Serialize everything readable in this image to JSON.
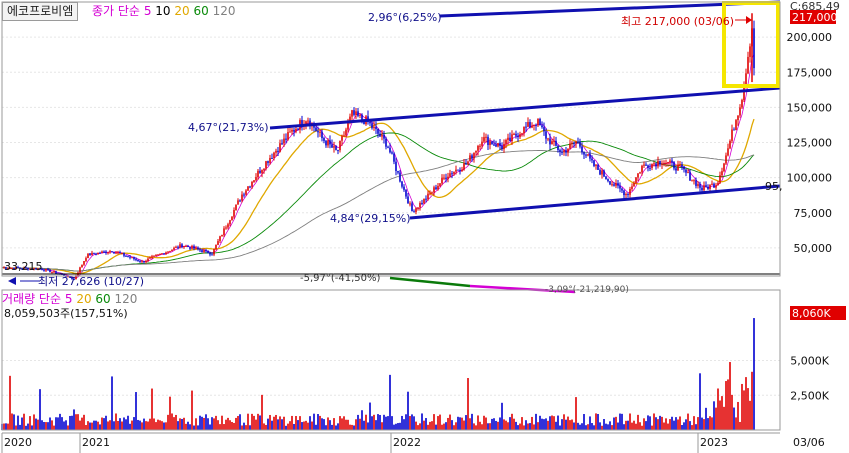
{
  "stock_name": "에코프로비엠",
  "price_indicator": {
    "label": "종가 단순",
    "periods": [
      "5",
      "10",
      "20",
      "60",
      "120"
    ],
    "colors": [
      "#d400d4",
      "#000000",
      "#e0a800",
      "#0a8a0a",
      "#808080"
    ]
  },
  "volume_indicator": {
    "label": "거래량 단순",
    "periods": [
      "5",
      "20",
      "60",
      "120"
    ],
    "colors": [
      "#d400d4",
      "#e0a800",
      "#0a8a0a",
      "#808080"
    ]
  },
  "volume_value": "8,059,503주(157,51%)",
  "price_axis": {
    "ticks": [
      "200,000",
      "175,000",
      "150,000",
      "125,000",
      "100,000",
      "75,000",
      "50,000"
    ],
    "tick_values": [
      200000,
      175000,
      150000,
      125000,
      100000,
      75000,
      50000
    ],
    "range": [
      30000,
      225000
    ]
  },
  "volume_axis": {
    "ticks": [
      "5,000K",
      "2,500K"
    ],
    "tick_values": [
      5000,
      2500
    ],
    "range": [
      0,
      9000
    ]
  },
  "time_axis": {
    "labels": [
      "2020",
      "2021",
      "2022",
      "2023",
      "03/06"
    ]
  },
  "badges": {
    "current_price": "217,000",
    "current_volume": "8,060K",
    "top_clip": "C:685,49"
  },
  "annotations": {
    "high": "최고 217,000 (03/06)",
    "low": "최저 27,626 (10/27)",
    "left_level": "33,215",
    "right_level": "95,",
    "line_top": "2,96°(6,25%)",
    "line_mid": "4,67°(21,73%)",
    "line_low": "4,84°(29,15%)",
    "clipped_1": "-5,97°(-41,50%)",
    "clipped_2": "-3,09°(-21,219,90)"
  },
  "chart_data": [
    {
      "type": "line",
      "name_text": "종가",
      "x": [
        "2020",
        "2021",
        "2022",
        "2023",
        "03/06"
      ],
      "ylim": [
        30000,
        225000
      ],
      "anchors": [
        [
          0,
          36000
        ],
        [
          40,
          35000
        ],
        [
          60,
          31000
        ],
        [
          72,
          27626
        ],
        [
          85,
          45000
        ],
        [
          110,
          48000
        ],
        [
          140,
          40000
        ],
        [
          180,
          52000
        ],
        [
          210,
          46000
        ],
        [
          240,
          88000
        ],
        [
          265,
          112000
        ],
        [
          290,
          133000
        ],
        [
          305,
          143000
        ],
        [
          320,
          128000
        ],
        [
          335,
          118000
        ],
        [
          350,
          145000
        ],
        [
          365,
          140000
        ],
        [
          385,
          124000
        ],
        [
          400,
          95000
        ],
        [
          410,
          76000
        ],
        [
          425,
          86000
        ],
        [
          445,
          102000
        ],
        [
          465,
          110000
        ],
        [
          480,
          128000
        ],
        [
          500,
          122000
        ],
        [
          520,
          134000
        ],
        [
          535,
          140000
        ],
        [
          545,
          128000
        ],
        [
          560,
          118000
        ],
        [
          575,
          126000
        ],
        [
          590,
          110000
        ],
        [
          610,
          96000
        ],
        [
          625,
          88000
        ],
        [
          640,
          108000
        ],
        [
          660,
          112000
        ],
        [
          680,
          106000
        ],
        [
          700,
          92000
        ],
        [
          715,
          96000
        ],
        [
          725,
          118000
        ],
        [
          740,
          158000
        ],
        [
          752,
          217000
        ]
      ],
      "high": 217000,
      "low": 27626,
      "gridlines": true
    },
    {
      "type": "bar",
      "name_text": "거래량",
      "ylim": [
        0,
        9000
      ],
      "max": 8060,
      "gridlines": true
    }
  ]
}
